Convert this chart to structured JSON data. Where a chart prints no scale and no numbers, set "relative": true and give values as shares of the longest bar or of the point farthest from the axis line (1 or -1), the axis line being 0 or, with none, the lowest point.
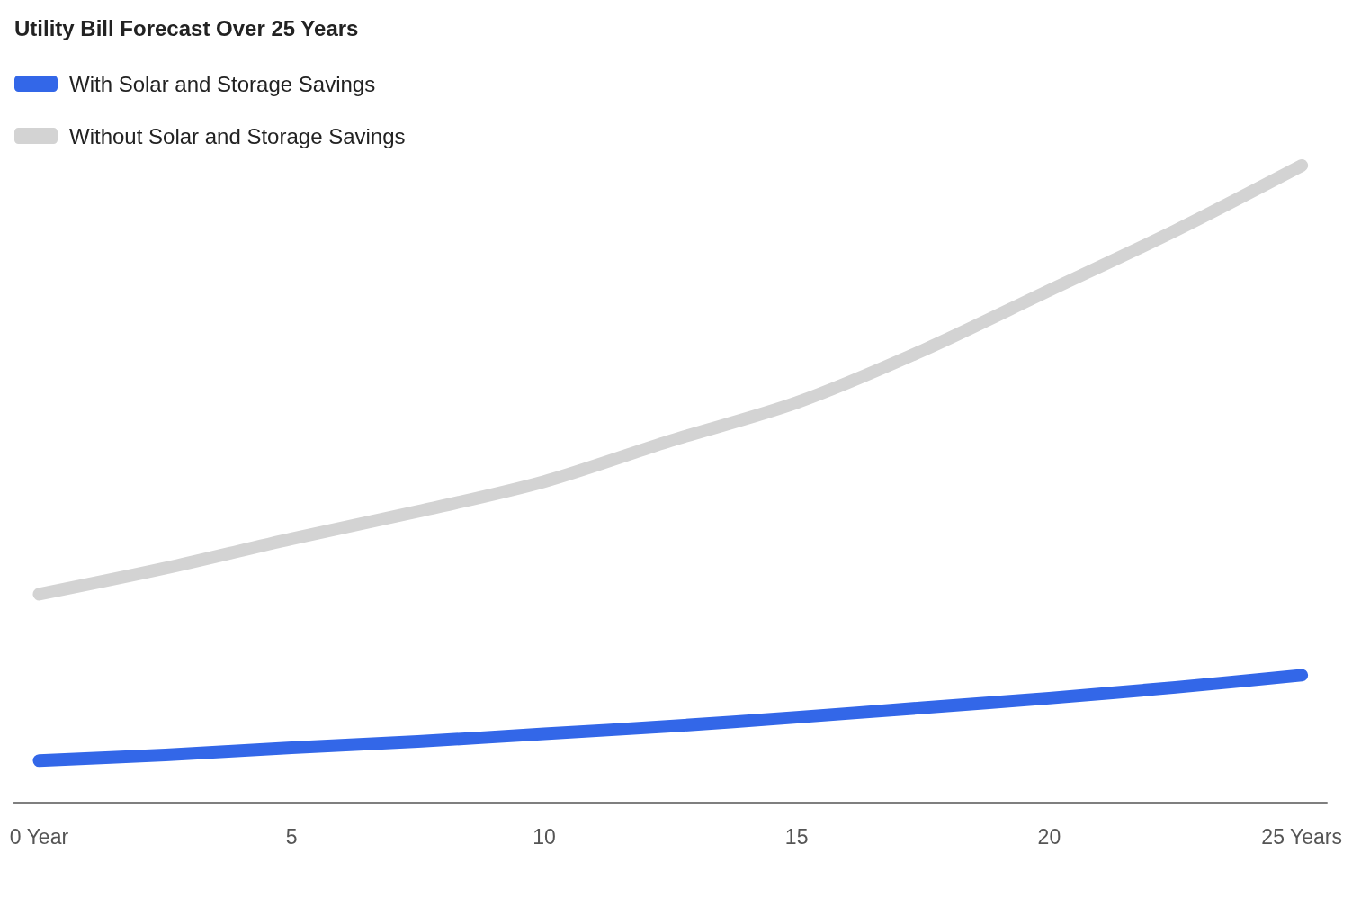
{
  "chart_data": {
    "type": "line",
    "title": "Utility Bill Forecast Over 25 Years",
    "relative": true,
    "x": [
      0,
      2.5,
      5,
      7.5,
      10,
      12.5,
      15,
      17.5,
      20,
      22.5,
      25
    ],
    "xlim": [
      -0.5,
      25.5
    ],
    "xticks": [
      {
        "value": 0,
        "label": "0 Year"
      },
      5,
      10,
      15,
      20,
      {
        "value": 25,
        "label": "25 Years"
      }
    ],
    "series": [
      {
        "name": "With Solar and Storage Savings",
        "color": "#3367e8",
        "values": [
          0.066,
          0.075,
          0.086,
          0.096,
          0.108,
          0.12,
          0.134,
          0.149,
          0.164,
          0.181,
          0.2
        ]
      },
      {
        "name": "Without Solar and Storage Savings",
        "color": "#d3d3d3",
        "values": [
          0.327,
          0.368,
          0.414,
          0.457,
          0.504,
          0.568,
          0.628,
          0.71,
          0.804,
          0.898,
          1
        ]
      }
    ],
    "legend": "top left",
    "grid": false,
    "line_style": "solid"
  }
}
